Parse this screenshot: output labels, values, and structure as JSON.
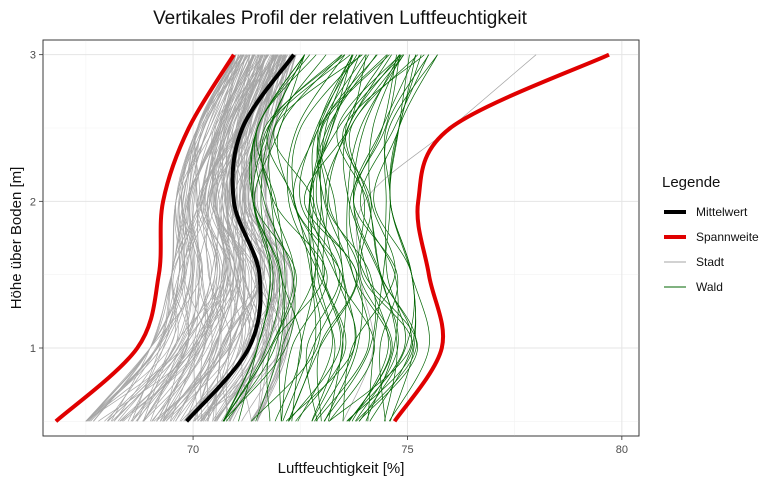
{
  "chart_data": {
    "type": "line",
    "orientation": "vertical-profile",
    "title": "Vertikales Profil der relativen Luftfeuchtigkeit",
    "xlabel": "Luftfeuchtigkeit [%]",
    "ylabel": "Höhe über Boden [m]",
    "xlim": [
      66.5,
      80.4
    ],
    "ylim": [
      0.4,
      3.1
    ],
    "x_ticks": [
      70,
      75,
      80
    ],
    "x_tick_labels": [
      "70",
      "75",
      "80"
    ],
    "y_ticks": [
      1,
      2,
      3
    ],
    "y_tick_labels": [
      "1",
      "2",
      "3"
    ],
    "grid": true,
    "legend": {
      "title": "Legende",
      "position": "right",
      "entries": [
        {
          "label": "Mittelwert",
          "color": "#000000",
          "width": 4
        },
        {
          "label": "Spannweite",
          "color": "#e00000",
          "width": 4
        },
        {
          "label": "Stadt",
          "color": "#a6a6a6",
          "width": 1
        },
        {
          "label": "Wald",
          "color": "#006400",
          "width": 1
        }
      ]
    },
    "series": [
      {
        "name": "Mittelwert",
        "color": "#000000",
        "heights": [
          0.5,
          1.0,
          1.5,
          2.0,
          2.5,
          3.0
        ],
        "values": [
          69.85,
          71.3,
          71.55,
          70.95,
          71.15,
          72.35
        ]
      },
      {
        "name": "Spannweite (min)",
        "color": "#e00000",
        "heights": [
          0.5,
          1.0,
          1.5,
          2.0,
          2.5,
          3.0
        ],
        "values": [
          66.8,
          68.7,
          69.2,
          69.3,
          69.9,
          70.95
        ]
      },
      {
        "name": "Spannweite (max)",
        "color": "#e00000",
        "heights": [
          0.5,
          1.0,
          1.5,
          2.0,
          2.5,
          3.0
        ],
        "values": [
          74.7,
          75.8,
          75.5,
          75.25,
          76.0,
          79.7
        ]
      },
      {
        "name": "Stadt",
        "color": "#a6a6a6",
        "count": 120,
        "heights": [
          0.5,
          1.0,
          1.5,
          2.0,
          2.5,
          3.0
        ],
        "band_min": [
          67.5,
          69.0,
          69.5,
          69.6,
          70.1,
          71.0
        ],
        "band_max": [
          71.5,
          72.2,
          72.3,
          71.7,
          71.9,
          72.4
        ]
      },
      {
        "name": "Wald",
        "color": "#006400",
        "count": 50,
        "heights": [
          0.5,
          1.0,
          1.5,
          2.0,
          2.5,
          3.0
        ],
        "band_min": [
          70.7,
          71.5,
          71.8,
          71.4,
          71.5,
          72.6
        ],
        "band_max": [
          74.6,
          75.5,
          75.1,
          74.6,
          74.8,
          75.7
        ]
      },
      {
        "name": "Stadt (Ausreisser)",
        "color": "#a6a6a6",
        "heights": [
          0.5,
          1.0,
          1.5,
          2.0,
          2.5,
          3.0
        ],
        "values": [
          73.5,
          74.2,
          73.9,
          74.0,
          76.0,
          78.0
        ]
      }
    ]
  }
}
